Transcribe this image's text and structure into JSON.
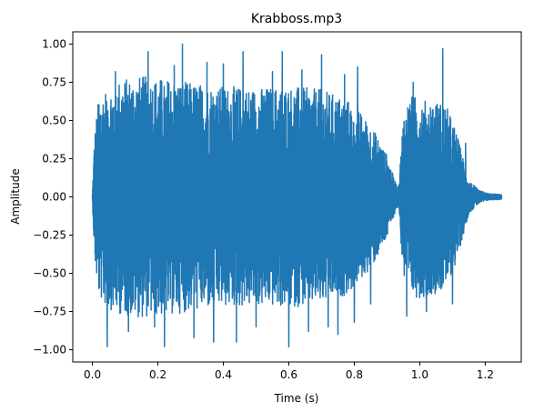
{
  "chart_data": {
    "type": "line",
    "title": "Krabboss.mp3",
    "xlabel": "Time (s)",
    "ylabel": "Amplitude",
    "xlim": [
      -0.06,
      1.31
    ],
    "ylim": [
      -1.08,
      1.08
    ],
    "xticks": [
      0.0,
      0.2,
      0.4,
      0.6,
      0.8,
      1.0,
      1.2
    ],
    "xtick_labels": [
      "0.0",
      "0.2",
      "0.4",
      "0.6",
      "0.8",
      "1.0",
      "1.2"
    ],
    "yticks": [
      -1.0,
      -0.75,
      -0.5,
      -0.25,
      0.0,
      0.25,
      0.5,
      0.75,
      1.0
    ],
    "ytick_labels": [
      "−1.00",
      "−0.75",
      "−0.50",
      "−0.25",
      "0.00",
      "0.25",
      "0.50",
      "0.75",
      "1.00"
    ],
    "grid": false,
    "series": [
      {
        "color": "#1f77b4",
        "envelope_time": [
          0.0,
          0.005,
          0.01,
          0.02,
          0.04,
          0.08,
          0.15,
          0.25,
          0.3,
          0.4,
          0.5,
          0.6,
          0.7,
          0.78,
          0.82,
          0.86,
          0.9,
          0.92,
          0.935,
          0.94,
          0.95,
          0.97,
          1.0,
          1.04,
          1.08,
          1.11,
          1.13,
          1.15,
          1.18,
          1.21,
          1.25
        ],
        "envelope_amplitude": [
          0.02,
          0.3,
          0.45,
          0.6,
          0.65,
          0.7,
          0.72,
          0.7,
          0.68,
          0.66,
          0.65,
          0.66,
          0.64,
          0.58,
          0.5,
          0.4,
          0.25,
          0.12,
          0.05,
          0.2,
          0.5,
          0.6,
          0.6,
          0.58,
          0.55,
          0.4,
          0.25,
          0.1,
          0.04,
          0.02,
          0.015
        ],
        "peaks": [
          {
            "t": 0.02,
            "v": 0.6
          },
          {
            "t": 0.045,
            "v": -0.98
          },
          {
            "t": 0.07,
            "v": 0.82
          },
          {
            "t": 0.11,
            "v": -0.88
          },
          {
            "t": 0.17,
            "v": 0.95
          },
          {
            "t": 0.19,
            "v": -0.85
          },
          {
            "t": 0.22,
            "v": -0.98
          },
          {
            "t": 0.25,
            "v": 0.86
          },
          {
            "t": 0.275,
            "v": 1.0
          },
          {
            "t": 0.31,
            "v": -0.92
          },
          {
            "t": 0.35,
            "v": 0.88
          },
          {
            "t": 0.37,
            "v": -0.95
          },
          {
            "t": 0.4,
            "v": 0.87
          },
          {
            "t": 0.44,
            "v": -0.95
          },
          {
            "t": 0.46,
            "v": 0.95
          },
          {
            "t": 0.5,
            "v": -0.85
          },
          {
            "t": 0.55,
            "v": 0.82
          },
          {
            "t": 0.58,
            "v": 0.95
          },
          {
            "t": 0.6,
            "v": -0.98
          },
          {
            "t": 0.64,
            "v": 0.83
          },
          {
            "t": 0.66,
            "v": -0.88
          },
          {
            "t": 0.7,
            "v": 0.93
          },
          {
            "t": 0.72,
            "v": -0.85
          },
          {
            "t": 0.75,
            "v": -0.9
          },
          {
            "t": 0.77,
            "v": 0.8
          },
          {
            "t": 0.8,
            "v": -0.82
          },
          {
            "t": 0.81,
            "v": 0.85
          },
          {
            "t": 0.85,
            "v": -0.7
          },
          {
            "t": 0.96,
            "v": -0.78
          },
          {
            "t": 0.98,
            "v": 0.75
          },
          {
            "t": 1.02,
            "v": -0.75
          },
          {
            "t": 1.07,
            "v": 0.97
          },
          {
            "t": 1.1,
            "v": -0.7
          },
          {
            "t": 1.14,
            "v": 0.35
          }
        ]
      }
    ]
  }
}
